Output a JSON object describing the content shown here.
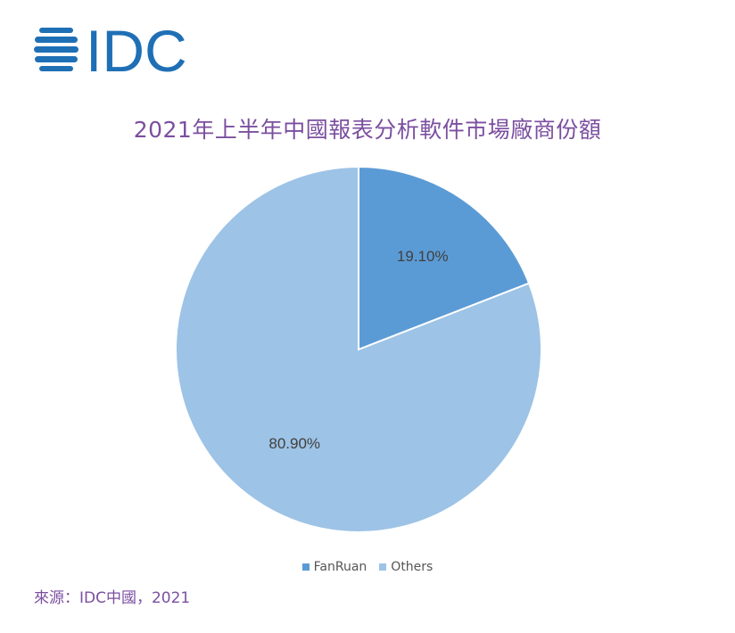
{
  "logo": {
    "text": "IDC",
    "color": "#1f6fb5"
  },
  "chart_data": {
    "type": "pie",
    "title": "2021年上半年中國報表分析軟件市場廠商份額",
    "labels": [
      "FanRuan",
      "Others"
    ],
    "values": [
      19.1,
      80.9
    ],
    "data_labels": [
      "19.10%",
      "80.90%"
    ],
    "colors": [
      "#5b9bd5",
      "#9dc3e6"
    ],
    "legend_position": "bottom"
  },
  "source": "來源：IDC中國，2021"
}
